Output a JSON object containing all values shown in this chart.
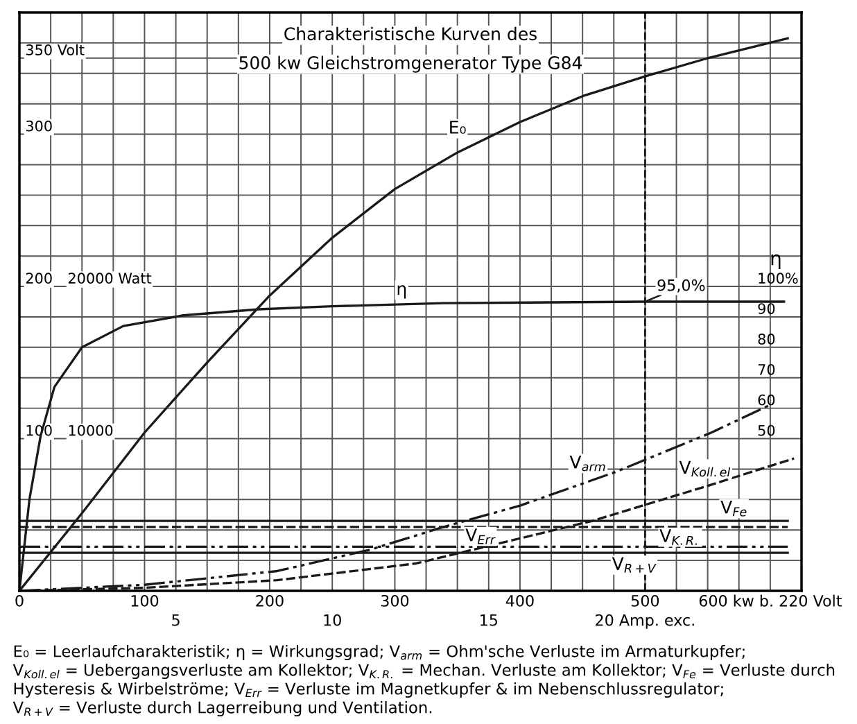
{
  "chart_data": {
    "type": "line",
    "title": "Charakteristische Kurven des",
    "subtitle": "500 kw Gleichstromgenerator Type G84",
    "y3label": "η",
    "xlim": [
      0,
      625
    ],
    "xticks": [
      0,
      {
        "value": 25,
        "label": null
      },
      {
        "value": 50,
        "label": null
      },
      {
        "value": 75,
        "label": null
      },
      100,
      {
        "value": 125,
        "label": null
      },
      {
        "value": 150,
        "label": null
      },
      {
        "value": 175,
        "label": null
      },
      200,
      {
        "value": 225,
        "label": null
      },
      {
        "value": 250,
        "label": null
      },
      {
        "value": 275,
        "label": null
      },
      300,
      {
        "value": 325,
        "label": null
      },
      {
        "value": 350,
        "label": null
      },
      {
        "value": 375,
        "label": null
      },
      400,
      {
        "value": 425,
        "label": null
      },
      {
        "value": 450,
        "label": null
      },
      {
        "value": 475,
        "label": null
      },
      500,
      {
        "value": 525,
        "label": null
      },
      {
        "value": 550,
        "label": null
      },
      {
        "value": 575,
        "label": null
      },
      {
        "value": 600,
        "label": "600 kw b. 220 Volt"
      }
    ],
    "x2lim": [
      0,
      25
    ],
    "x2ticks": [
      5,
      10,
      15,
      {
        "value": 20,
        "label": "20 Amp. exc."
      }
    ],
    "ylim": [
      0,
      380
    ],
    "yticks": [
      {
        "value": 20,
        "label": null
      },
      {
        "value": 40,
        "label": null
      },
      {
        "value": 60,
        "label": null
      },
      {
        "value": 80,
        "label": null
      },
      100,
      {
        "value": 120,
        "label": null
      },
      {
        "value": 140,
        "label": null
      },
      {
        "value": 160,
        "label": null
      },
      {
        "value": 180,
        "label": null
      },
      200,
      {
        "value": 220,
        "label": null
      },
      {
        "value": 240,
        "label": null
      },
      {
        "value": 260,
        "label": null
      },
      {
        "value": 280,
        "label": null
      },
      300,
      {
        "value": 320,
        "label": null
      },
      {
        "value": 340,
        "label": null
      },
      {
        "value": 350,
        "label": "350 Volt"
      },
      {
        "value": 360,
        "label": null
      }
    ],
    "y2lim": [
      0,
      38000
    ],
    "y2ticks": [
      10000,
      {
        "value": 20000,
        "label": "20000 Watt"
      }
    ],
    "y3lim": [
      0,
      190
    ],
    "y3ticks": [
      50,
      60,
      70,
      80,
      90,
      {
        "value": 100,
        "label": "100%"
      }
    ],
    "grid": true,
    "legend": false,
    "marker": "none",
    "series": [
      {
        "name": "E₀",
        "color": "#1a1a1a",
        "axis": "y",
        "line_style": "solid",
        "x": [
          0,
          50,
          100,
          150,
          200,
          250,
          300,
          350,
          400,
          450,
          500,
          550,
          614
        ],
        "values": [
          0,
          51,
          104,
          150,
          194,
          232,
          264,
          288,
          308,
          325,
          338,
          350,
          363
        ]
      },
      {
        "name": "η",
        "color": "#1a1a1a",
        "axis": "y3",
        "line_style": "solid",
        "x": [
          0,
          8,
          17,
          28,
          50,
          83,
          131,
          191,
          250,
          339,
          500,
          611
        ],
        "values": [
          0,
          30,
          51,
          67,
          80,
          87,
          90.5,
          92.5,
          93.5,
          94.5,
          95.0,
          95.0
        ]
      },
      {
        "name": "V$_{arm}$",
        "color": "#1a1a1a",
        "axis": "y2",
        "line_style": "dashdot",
        "x": [
          0,
          100,
          206,
          280,
          339,
          400,
          476,
          553,
          602
        ],
        "values": [
          0,
          400,
          1300,
          2700,
          4200,
          5600,
          7800,
          10400,
          12300
        ]
      },
      {
        "name": "V$_{Koll.el}$",
        "color": "#1a1a1a",
        "axis": "y2",
        "line_style": "dashed",
        "x": [
          0,
          100,
          206,
          317,
          458,
          550,
          619
        ],
        "values": [
          0,
          200,
          700,
          1800,
          4600,
          6900,
          8700
        ]
      },
      {
        "name": "V$_{Fe}$",
        "color": "#1a1a1a",
        "axis": "y2",
        "line_style": "solid",
        "x": [
          0,
          614
        ],
        "values": [
          4600,
          4600
        ]
      },
      {
        "name": "V$_{K.R.}$",
        "color": "#1a1a1a",
        "axis": "y2",
        "line_style": "dashed",
        "x": [
          0,
          614
        ],
        "values": [
          4200,
          4200
        ]
      },
      {
        "name": "V$_{Err}$",
        "color": "#1a1a1a",
        "axis": "y2",
        "line_style": "dashdot",
        "x": [
          0,
          614
        ],
        "values": [
          2900,
          2900
        ]
      },
      {
        "name": "V$_{R+V}$",
        "color": "#1a1a1a",
        "axis": "y2",
        "line_style": "solid",
        "x": [
          0,
          614
        ],
        "values": [
          2500,
          2500
        ]
      }
    ],
    "ref_lines": [
      {
        "axis": "x",
        "value": 500,
        "line_style": "dashed",
        "color": "#1a1a1a"
      }
    ],
    "annotations": [
      {
        "text": "95,0%",
        "x": 500,
        "y": 190
      },
      "E₀ = Leerlaufcharakteristik; η = Wirkungsgrad; V$_{arm}$ = Ohm'sche Verluste im Armaturkupfer;",
      "V$_{Koll.el}$ = Uebergangsverluste am Kollektor; V$_{K.R.}$ = Mechan. Verluste am Kollektor; V$_{Fe}$ = Verluste durch",
      "Hysteresis & Wirbelströme; V$_{Err}$ = Verluste im Magnetkupfer & im Nebenschlussregulator;",
      "V$_{R+V}$ = Verluste durch Lagerreibung und Ventilation."
    ]
  }
}
